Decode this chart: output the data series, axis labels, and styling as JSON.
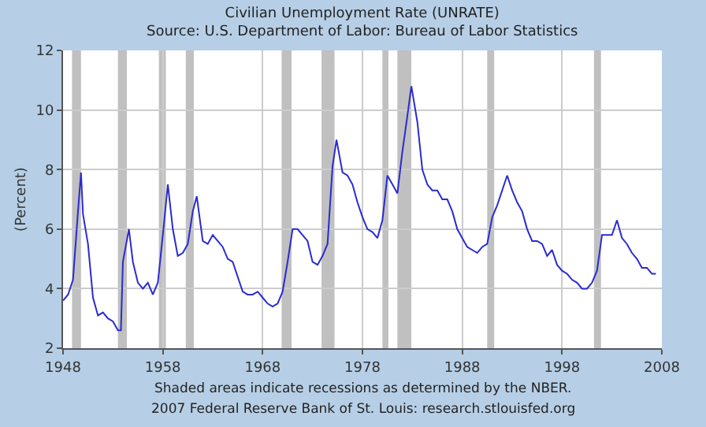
{
  "chart_data": {
    "type": "line",
    "title": "Civilian Unemployment Rate (UNRATE)",
    "subtitle": "Source: U.S. Department of Labor: Bureau of Labor Statistics",
    "ylabel": "(Percent)",
    "annotations": [
      "Shaded areas indicate recessions as determined by the NBER.",
      "2007 Federal Reserve Bank of St. Louis: research.stlouisfed.org"
    ],
    "x": [
      1948.0,
      1948.5,
      1949.0,
      1949.5,
      1949.8,
      1950.0,
      1950.5,
      1951.0,
      1951.5,
      1952.0,
      1952.5,
      1953.0,
      1953.5,
      1953.8,
      1954.0,
      1954.6,
      1955.0,
      1955.5,
      1956.0,
      1956.5,
      1957.0,
      1957.5,
      1958.0,
      1958.5,
      1959.0,
      1959.5,
      1960.0,
      1960.5,
      1961.0,
      1961.4,
      1962.0,
      1962.5,
      1963.0,
      1963.5,
      1964.0,
      1964.5,
      1965.0,
      1965.5,
      1966.0,
      1966.5,
      1967.0,
      1967.5,
      1968.0,
      1968.5,
      1969.0,
      1969.5,
      1970.0,
      1970.5,
      1971.0,
      1971.5,
      1972.0,
      1972.5,
      1973.0,
      1973.5,
      1974.0,
      1974.5,
      1975.0,
      1975.4,
      1976.0,
      1976.5,
      1977.0,
      1977.5,
      1978.0,
      1978.5,
      1979.0,
      1979.5,
      1980.0,
      1980.5,
      1981.0,
      1981.5,
      1982.0,
      1982.5,
      1982.9,
      1983.5,
      1984.0,
      1984.5,
      1985.0,
      1985.5,
      1986.0,
      1986.5,
      1987.0,
      1987.5,
      1988.0,
      1988.5,
      1989.0,
      1989.5,
      1990.0,
      1990.5,
      1991.0,
      1991.5,
      1992.5,
      1993.0,
      1993.5,
      1994.0,
      1994.5,
      1995.0,
      1995.5,
      1996.0,
      1996.5,
      1997.0,
      1997.5,
      1998.0,
      1998.5,
      1999.0,
      1999.5,
      2000.0,
      2000.5,
      2001.0,
      2001.5,
      2002.0,
      2002.5,
      2003.0,
      2003.5,
      2004.0,
      2004.5,
      2005.0,
      2005.5,
      2006.0,
      2006.5,
      2007.0,
      2007.4
    ],
    "series": [
      {
        "color": "#2b2bd0",
        "values": [
          3.6,
          3.8,
          4.3,
          6.6,
          7.9,
          6.5,
          5.5,
          3.7,
          3.1,
          3.2,
          3.0,
          2.9,
          2.6,
          2.6,
          4.9,
          6.0,
          4.9,
          4.2,
          4.0,
          4.2,
          3.8,
          4.2,
          5.8,
          7.5,
          6.0,
          5.1,
          5.2,
          5.5,
          6.6,
          7.1,
          5.6,
          5.5,
          5.8,
          5.6,
          5.4,
          5.0,
          4.9,
          4.4,
          3.9,
          3.8,
          3.8,
          3.9,
          3.7,
          3.5,
          3.4,
          3.5,
          3.9,
          4.9,
          6.0,
          6.0,
          5.8,
          5.6,
          4.9,
          4.8,
          5.1,
          5.5,
          8.1,
          9.0,
          7.9,
          7.8,
          7.5,
          6.9,
          6.4,
          6.0,
          5.9,
          5.7,
          6.3,
          7.8,
          7.5,
          7.2,
          8.6,
          9.8,
          10.8,
          9.6,
          8.0,
          7.5,
          7.3,
          7.3,
          7.0,
          7.0,
          6.6,
          6.0,
          5.7,
          5.4,
          5.3,
          5.2,
          5.4,
          5.5,
          6.4,
          6.8,
          7.8,
          7.3,
          6.9,
          6.6,
          6.0,
          5.6,
          5.6,
          5.5,
          5.1,
          5.3,
          4.8,
          4.6,
          4.5,
          4.3,
          4.2,
          4.0,
          4.0,
          4.2,
          4.6,
          5.8,
          5.8,
          5.8,
          6.3,
          5.7,
          5.5,
          5.2,
          5.0,
          4.7,
          4.7,
          4.5,
          4.5
        ]
      }
    ],
    "xlim": [
      1948,
      2008
    ],
    "xticks": [
      1948,
      1958,
      1968,
      1978,
      1988,
      1998,
      2008
    ],
    "ylim": [
      2,
      12
    ],
    "yticks": [
      2,
      4,
      6,
      8,
      10,
      12
    ],
    "grid": true,
    "marker": "none",
    "line_style": "solid",
    "bands": [
      {
        "axis": "x",
        "from": 1948.9,
        "to": 1949.8,
        "color": "#c0c0c0"
      },
      {
        "axis": "x",
        "from": 1953.5,
        "to": 1954.4,
        "color": "#c0c0c0"
      },
      {
        "axis": "x",
        "from": 1957.6,
        "to": 1958.3,
        "color": "#c0c0c0"
      },
      {
        "axis": "x",
        "from": 1960.3,
        "to": 1961.1,
        "color": "#c0c0c0"
      },
      {
        "axis": "x",
        "from": 1969.9,
        "to": 1970.9,
        "color": "#c0c0c0"
      },
      {
        "axis": "x",
        "from": 1973.9,
        "to": 1975.2,
        "color": "#c0c0c0"
      },
      {
        "axis": "x",
        "from": 1980.0,
        "to": 1980.6,
        "color": "#c0c0c0"
      },
      {
        "axis": "x",
        "from": 1981.5,
        "to": 1982.9,
        "color": "#c0c0c0"
      },
      {
        "axis": "x",
        "from": 1990.5,
        "to": 1991.2,
        "color": "#c0c0c0"
      },
      {
        "axis": "x",
        "from": 2001.2,
        "to": 2001.9,
        "color": "#c0c0c0"
      }
    ]
  }
}
